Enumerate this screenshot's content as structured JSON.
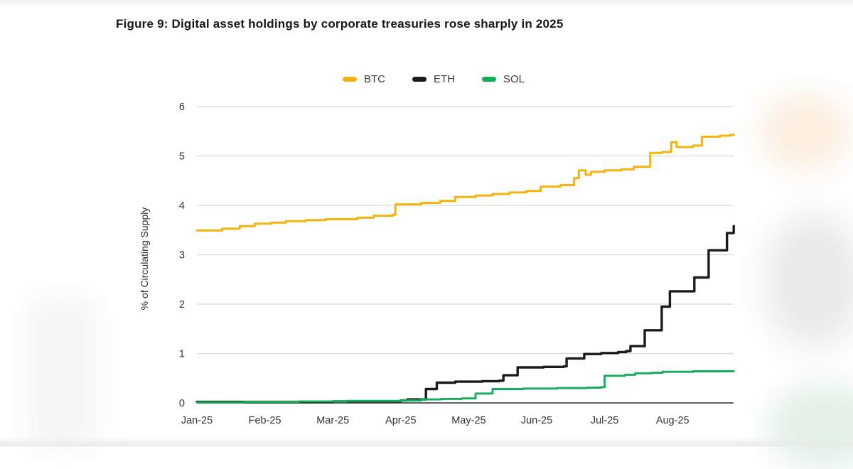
{
  "page": {
    "background": "#ffffff"
  },
  "chart_data": {
    "type": "line",
    "title": "Figure 9: Digital asset holdings by corporate treasuries rose sharply in 2025",
    "ylabel": "% of Circulating Supply",
    "xlabel": "",
    "grid": "horizontal-only",
    "legend_position": "top-center",
    "interpolation": "step-after",
    "x_axis": {
      "unit": "months since Jan-2025",
      "tick_positions": [
        0,
        1,
        2,
        3,
        4,
        5,
        6,
        7
      ],
      "tick_labels": [
        "Jan-25",
        "Feb-25",
        "Mar-25",
        "Apr-25",
        "May-25",
        "Jun-25",
        "Jul-25",
        "Aug-25"
      ],
      "range": [
        0,
        7.9
      ]
    },
    "y_axis": {
      "tick_positions": [
        0,
        1,
        2,
        3,
        4,
        5,
        6
      ],
      "tick_labels": [
        "0",
        "1",
        "2",
        "3",
        "4",
        "5",
        "6"
      ],
      "range": [
        0,
        6
      ]
    },
    "axis_colors": {
      "gridline": "#dadada",
      "baseline": "#5f6368",
      "tick_text": "#333333"
    },
    "series": [
      {
        "name": "BTC",
        "color": "#F6B40B",
        "points": [
          [
            0,
            3.49
          ],
          [
            0.37,
            3.53
          ],
          [
            0.63,
            3.58
          ],
          [
            0.85,
            3.63
          ],
          [
            1.1,
            3.65
          ],
          [
            1.31,
            3.68
          ],
          [
            1.6,
            3.7
          ],
          [
            1.89,
            3.72
          ],
          [
            2.36,
            3.75
          ],
          [
            2.6,
            3.79
          ],
          [
            2.88,
            3.81
          ],
          [
            2.92,
            4.02
          ],
          [
            3.3,
            4.05
          ],
          [
            3.58,
            4.09
          ],
          [
            3.8,
            4.17
          ],
          [
            4.1,
            4.2
          ],
          [
            4.35,
            4.23
          ],
          [
            4.6,
            4.26
          ],
          [
            4.85,
            4.29
          ],
          [
            5.06,
            4.38
          ],
          [
            5.35,
            4.41
          ],
          [
            5.55,
            4.55
          ],
          [
            5.62,
            4.71
          ],
          [
            5.72,
            4.62
          ],
          [
            5.8,
            4.68
          ],
          [
            6.0,
            4.71
          ],
          [
            6.25,
            4.73
          ],
          [
            6.43,
            4.78
          ],
          [
            6.67,
            5.06
          ],
          [
            6.85,
            5.08
          ],
          [
            6.98,
            5.28
          ],
          [
            7.06,
            5.18
          ],
          [
            7.3,
            5.21
          ],
          [
            7.43,
            5.39
          ],
          [
            7.7,
            5.41
          ],
          [
            7.85,
            5.43
          ],
          [
            7.9,
            5.43
          ]
        ]
      },
      {
        "name": "ETH",
        "color": "#1B1B1B",
        "points": [
          [
            0,
            0.02
          ],
          [
            1,
            0.02
          ],
          [
            2,
            0.03
          ],
          [
            3.0,
            0.05
          ],
          [
            3.1,
            0.07
          ],
          [
            3.37,
            0.28
          ],
          [
            3.53,
            0.41
          ],
          [
            3.8,
            0.43
          ],
          [
            4.2,
            0.44
          ],
          [
            4.45,
            0.45
          ],
          [
            4.51,
            0.56
          ],
          [
            4.72,
            0.72
          ],
          [
            5.1,
            0.73
          ],
          [
            5.4,
            0.74
          ],
          [
            5.44,
            0.9
          ],
          [
            5.7,
            0.99
          ],
          [
            5.95,
            1.01
          ],
          [
            6.2,
            1.03
          ],
          [
            6.32,
            1.05
          ],
          [
            6.38,
            1.15
          ],
          [
            6.59,
            1.47
          ],
          [
            6.84,
            1.95
          ],
          [
            6.96,
            2.26
          ],
          [
            7.32,
            2.54
          ],
          [
            7.53,
            3.09
          ],
          [
            7.8,
            3.44
          ],
          [
            7.9,
            3.58
          ]
        ]
      },
      {
        "name": "SOL",
        "color": "#13AE5C",
        "points": [
          [
            0,
            0.01
          ],
          [
            0.7,
            0.02
          ],
          [
            1.5,
            0.03
          ],
          [
            2.2,
            0.04
          ],
          [
            3.0,
            0.05
          ],
          [
            3.3,
            0.07
          ],
          [
            3.6,
            0.08
          ],
          [
            3.9,
            0.09
          ],
          [
            4.1,
            0.19
          ],
          [
            4.35,
            0.28
          ],
          [
            4.8,
            0.29
          ],
          [
            5.3,
            0.3
          ],
          [
            5.75,
            0.31
          ],
          [
            5.95,
            0.32
          ],
          [
            6.0,
            0.55
          ],
          [
            6.3,
            0.57
          ],
          [
            6.45,
            0.6
          ],
          [
            6.7,
            0.61
          ],
          [
            6.85,
            0.63
          ],
          [
            7.3,
            0.64
          ],
          [
            7.9,
            0.64
          ]
        ]
      }
    ]
  }
}
